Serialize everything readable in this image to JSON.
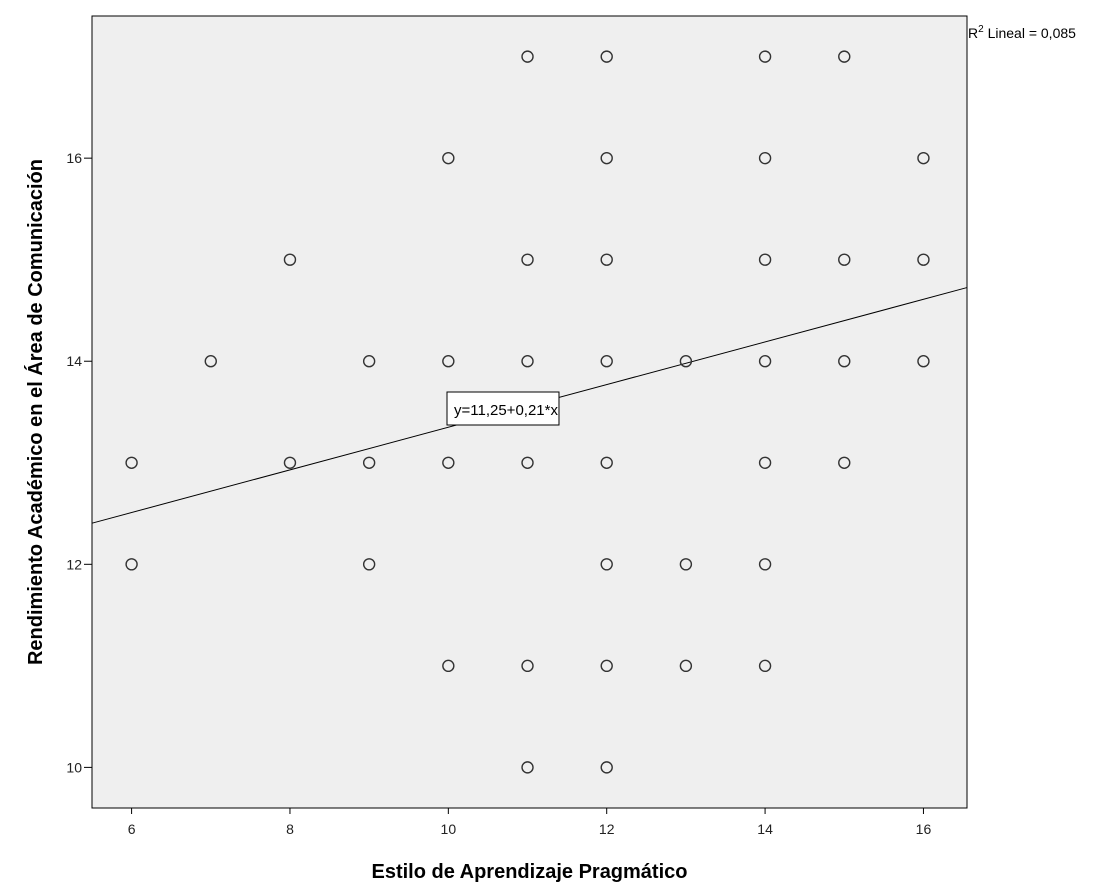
{
  "chart_data": {
    "type": "scatter",
    "xlabel": "Estilo de Aprendizaje Pragmático",
    "ylabel": "Rendimiento Académico en el Área de Comunicación",
    "xlim": [
      5.5,
      16.55
    ],
    "ylim": [
      9.6,
      17.4
    ],
    "xticks": [
      6,
      8,
      10,
      12,
      14,
      16
    ],
    "yticks": [
      10,
      12,
      14,
      16
    ],
    "grid": false,
    "background": "#efefef",
    "points": [
      {
        "x": 6,
        "y": 13
      },
      {
        "x": 6,
        "y": 12
      },
      {
        "x": 7,
        "y": 14
      },
      {
        "x": 8,
        "y": 15
      },
      {
        "x": 8,
        "y": 13
      },
      {
        "x": 9,
        "y": 14
      },
      {
        "x": 9,
        "y": 13
      },
      {
        "x": 9,
        "y": 12
      },
      {
        "x": 10,
        "y": 16
      },
      {
        "x": 10,
        "y": 14
      },
      {
        "x": 10,
        "y": 13
      },
      {
        "x": 10,
        "y": 11
      },
      {
        "x": 11,
        "y": 17
      },
      {
        "x": 11,
        "y": 15
      },
      {
        "x": 11,
        "y": 14
      },
      {
        "x": 11,
        "y": 13
      },
      {
        "x": 11,
        "y": 11
      },
      {
        "x": 11,
        "y": 10
      },
      {
        "x": 12,
        "y": 17
      },
      {
        "x": 12,
        "y": 16
      },
      {
        "x": 12,
        "y": 15
      },
      {
        "x": 12,
        "y": 14
      },
      {
        "x": 12,
        "y": 13
      },
      {
        "x": 12,
        "y": 12
      },
      {
        "x": 12,
        "y": 11
      },
      {
        "x": 12,
        "y": 10
      },
      {
        "x": 13,
        "y": 14
      },
      {
        "x": 13,
        "y": 12
      },
      {
        "x": 13,
        "y": 11
      },
      {
        "x": 14,
        "y": 17
      },
      {
        "x": 14,
        "y": 16
      },
      {
        "x": 14,
        "y": 15
      },
      {
        "x": 14,
        "y": 14
      },
      {
        "x": 14,
        "y": 13
      },
      {
        "x": 14,
        "y": 12
      },
      {
        "x": 14,
        "y": 11
      },
      {
        "x": 15,
        "y": 17
      },
      {
        "x": 15,
        "y": 15
      },
      {
        "x": 15,
        "y": 14
      },
      {
        "x": 15,
        "y": 13
      },
      {
        "x": 16,
        "y": 16
      },
      {
        "x": 16,
        "y": 15
      },
      {
        "x": 16,
        "y": 14
      }
    ],
    "fit": {
      "intercept": 11.25,
      "slope": 0.21
    },
    "fit_label": "y=11,25+0,21*x",
    "r2_label": {
      "prefix": "R",
      "superscript": "2",
      "text": " Lineal = 0,085"
    }
  }
}
